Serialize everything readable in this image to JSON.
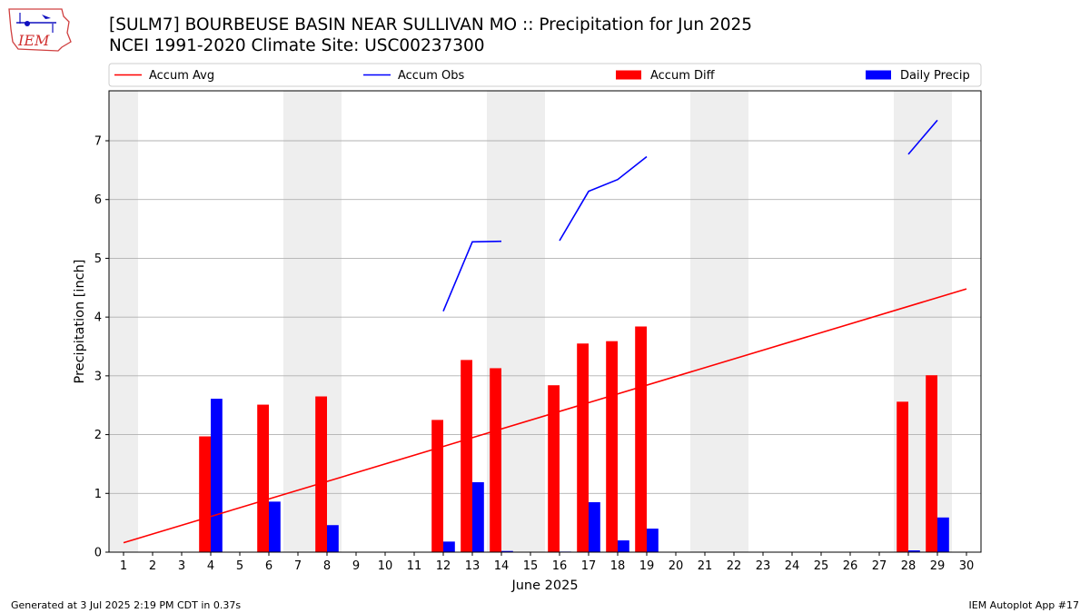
{
  "header": {
    "title_line1": "[SULM7] BOURBEUSE BASIN NEAR SULLIVAN  MO :: Precipitation for Jun 2025",
    "title_line2": "NCEI 1991-2020 Climate Site: USC00237300",
    "logo_text": "IEM"
  },
  "footer": {
    "generated": "Generated at 3 Jul 2025 2:19 PM CDT in 0.37s",
    "app": "IEM Autoplot App #17"
  },
  "colors": {
    "accum_avg": "#ff0000",
    "accum_obs": "#0000ff",
    "accum_diff": "#ff0000",
    "daily_precip": "#0000ff",
    "weekend_shade": "#eeeeee",
    "grid": "#b0b0b0"
  },
  "chart_data": {
    "type": "bar",
    "xlabel": "June 2025",
    "ylabel": "Precipitation [inch]",
    "ylim": [
      0,
      7.85
    ],
    "xlim": [
      0.5,
      30.5
    ],
    "yticks": [
      0,
      1,
      2,
      3,
      4,
      5,
      6,
      7
    ],
    "categories": [
      "1",
      "2",
      "3",
      "4",
      "5",
      "6",
      "7",
      "8",
      "9",
      "10",
      "11",
      "12",
      "13",
      "14",
      "15",
      "16",
      "17",
      "18",
      "19",
      "20",
      "21",
      "22",
      "23",
      "24",
      "25",
      "26",
      "27",
      "28",
      "29",
      "30"
    ],
    "grid": "horizontal",
    "legend_position": "top",
    "legend": [
      "Accum Avg",
      "Accum Obs",
      "Accum Diff",
      "Daily Precip"
    ],
    "weekend_days": [
      1,
      7,
      8,
      14,
      15,
      21,
      22,
      28,
      29
    ],
    "series": [
      {
        "name": "Accum Avg",
        "kind": "line",
        "x": [
          1,
          30
        ],
        "values": [
          0.16,
          4.48
        ]
      },
      {
        "name": "Accum Obs",
        "kind": "line",
        "segments": [
          {
            "x": [
              12,
              13,
              14
            ],
            "values": [
              4.1,
              5.28,
              5.29
            ]
          },
          {
            "x": [
              16,
              17,
              18,
              19
            ],
            "values": [
              5.3,
              6.14,
              6.34,
              6.73
            ]
          },
          {
            "x": [
              28,
              29
            ],
            "values": [
              6.77,
              7.35
            ]
          }
        ]
      },
      {
        "name": "Accum Diff",
        "kind": "bar",
        "values": [
          0,
          0,
          0,
          1.97,
          0,
          2.51,
          0,
          2.65,
          0,
          0,
          0,
          2.25,
          3.27,
          3.13,
          0,
          2.84,
          3.55,
          3.59,
          3.84,
          0,
          0,
          0,
          0,
          0,
          0,
          0,
          0,
          2.56,
          3.01,
          0
        ]
      },
      {
        "name": "Daily Precip",
        "kind": "bar",
        "values": [
          0,
          0,
          0,
          2.61,
          0,
          0.86,
          0,
          0.46,
          0,
          0,
          0,
          0.18,
          1.19,
          0.02,
          0,
          0.01,
          0.85,
          0.2,
          0.4,
          0,
          0,
          0,
          0,
          0,
          0,
          0,
          0,
          0.03,
          0.59,
          0
        ]
      }
    ]
  }
}
